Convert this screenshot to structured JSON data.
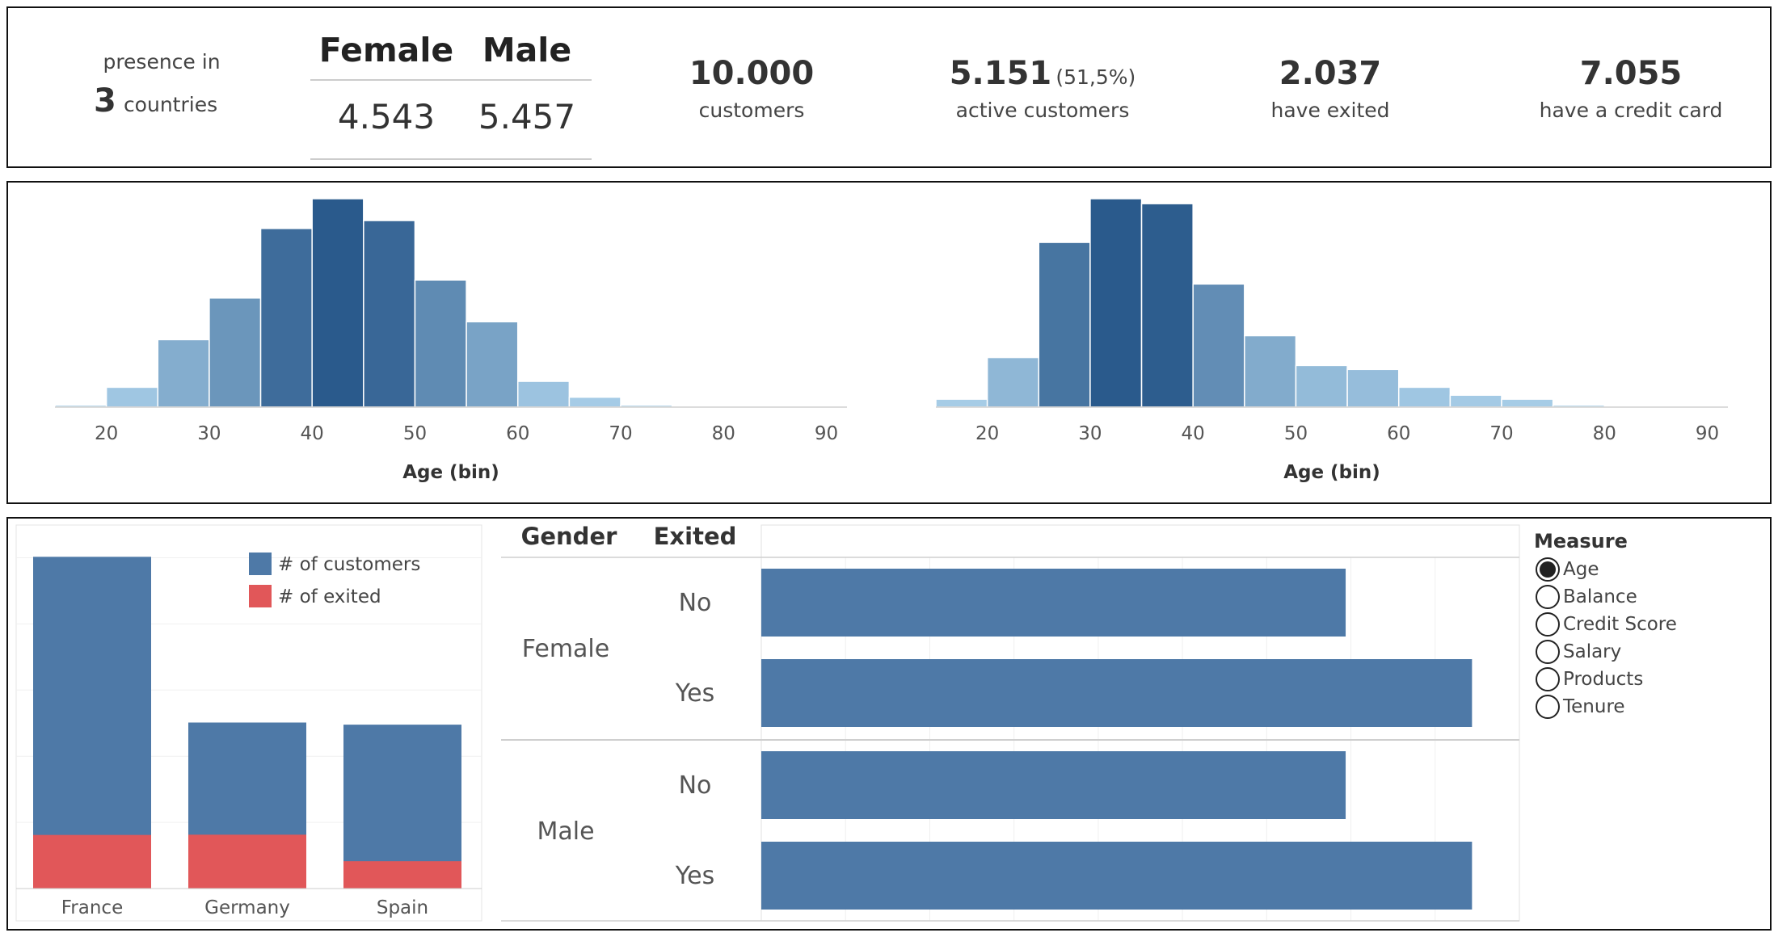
{
  "kpis": {
    "presence_prefix": "presence in",
    "countries_count": "3",
    "countries_label": "countries",
    "gender_header_female": "Female",
    "gender_header_male": "Male",
    "gender_value_female": "4.543",
    "gender_value_male": "5.457",
    "customers_value": "10.000",
    "customers_label": "customers",
    "active_value": "5.151",
    "active_pct": "(51,5%)",
    "active_label": "active customers",
    "exited_value": "2.037",
    "exited_label": "have exited",
    "credit_value": "7.055",
    "credit_label": "have a credit card"
  },
  "colors": {
    "bar_blue": "#4e79a7",
    "exited_red": "#e15759",
    "hist_light": "#a9cfe9",
    "hist_dark": "#2a5a8c"
  },
  "chart_data": [
    {
      "type": "bar",
      "title": "",
      "xlabel": "Age (bin)",
      "x_ticks": [
        20,
        30,
        40,
        50,
        60,
        70,
        80,
        90
      ],
      "bin_starts": [
        15,
        20,
        25,
        30,
        35,
        40,
        45,
        50,
        55,
        60,
        65,
        70,
        75,
        80,
        85
      ],
      "bin_width": 5,
      "values": [
        2,
        20,
        68,
        110,
        180,
        210,
        188,
        128,
        86,
        26,
        10,
        2,
        0,
        0,
        0
      ],
      "x_range": [
        15,
        92
      ]
    },
    {
      "type": "bar",
      "title": "",
      "xlabel": "Age (bin)",
      "x_ticks": [
        20,
        30,
        40,
        50,
        60,
        70,
        80,
        90
      ],
      "bin_starts": [
        15,
        20,
        25,
        30,
        35,
        40,
        45,
        50,
        55,
        60,
        65,
        70,
        75,
        80,
        85
      ],
      "bin_width": 5,
      "values": [
        8,
        50,
        166,
        210,
        205,
        124,
        72,
        42,
        38,
        20,
        12,
        8,
        2,
        0,
        0
      ],
      "x_range": [
        15,
        92
      ]
    },
    {
      "type": "bar",
      "title": "",
      "categories": [
        "France",
        "Germany",
        "Spain"
      ],
      "series": [
        {
          "name": "# of customers",
          "values": [
            5014,
            2509,
            2477
          ],
          "color": "#4e79a7"
        },
        {
          "name": "# of exited",
          "values": [
            810,
            814,
            413
          ],
          "color": "#e15759"
        }
      ],
      "legend": "top-right",
      "ylim": [
        0,
        5250
      ]
    },
    {
      "type": "bar",
      "orientation": "horizontal",
      "row_headers": [
        "Gender",
        "Exited"
      ],
      "groups": [
        {
          "gender": "Female",
          "rows": [
            {
              "exited": "No",
              "value": 37.0
            },
            {
              "exited": "Yes",
              "value": 45.0
            }
          ]
        },
        {
          "gender": "Male",
          "rows": [
            {
              "exited": "No",
              "value": 37.0
            },
            {
              "exited": "Yes",
              "value": 45.0
            }
          ]
        }
      ],
      "xlim": [
        0,
        48
      ]
    }
  ],
  "measure": {
    "title": "Measure",
    "options": [
      "Age",
      "Balance",
      "Credit Score",
      "Salary",
      "Products",
      "Tenure"
    ],
    "selected": "Age"
  }
}
